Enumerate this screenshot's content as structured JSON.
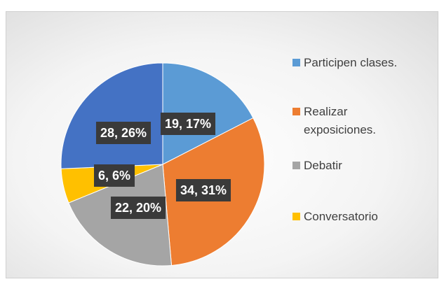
{
  "chart_data": {
    "type": "pie",
    "categories": [
      "Participen clases.",
      "Realizar exposiciones.",
      "Debatir",
      "Conversatorio",
      null
    ],
    "values": [
      19,
      34,
      22,
      6,
      28
    ],
    "value_labels": [
      "19, 17%",
      "34, 31%",
      "22, 20%",
      "6, 6%",
      "28, 26%"
    ],
    "colors": [
      "#5b9bd5",
      "#ed7d31",
      "#a5a5a5",
      "#ffc000",
      "#4472c4"
    ],
    "legend": "right"
  }
}
